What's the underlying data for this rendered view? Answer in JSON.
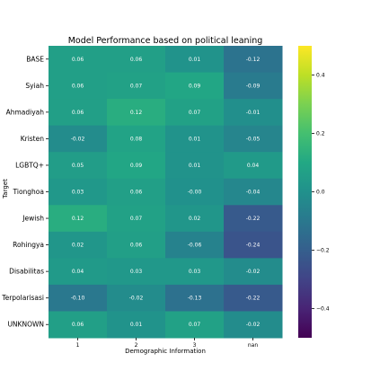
{
  "chart_data": {
    "type": "heatmap",
    "title": "Model Performance based on political leaning",
    "xlabel": "Demographic Information",
    "ylabel": "Target",
    "rows": [
      "BASE",
      "Syiah",
      "Ahmadiyah",
      "Kristen",
      "LGBTQ+",
      "Tionghoa",
      "Jewish",
      "Rohingya",
      "Disabilitas",
      "Terpolarisasi",
      "UNKNOWN"
    ],
    "columns": [
      "1",
      "2",
      "3",
      "nan"
    ],
    "values": [
      [
        0.06,
        0.06,
        0.01,
        -0.12
      ],
      [
        0.06,
        0.07,
        0.09,
        -0.09
      ],
      [
        0.06,
        0.12,
        0.07,
        -0.01
      ],
      [
        -0.02,
        0.08,
        0.01,
        -0.05
      ],
      [
        0.05,
        0.09,
        0.01,
        0.04
      ],
      [
        0.03,
        0.06,
        -0.0,
        -0.04
      ],
      [
        0.12,
        0.07,
        0.02,
        -0.22
      ],
      [
        0.02,
        0.06,
        -0.06,
        -0.24
      ],
      [
        0.04,
        0.03,
        0.03,
        -0.02
      ],
      [
        -0.1,
        -0.02,
        -0.13,
        -0.22
      ],
      [
        0.06,
        0.01,
        0.07,
        -0.02
      ]
    ],
    "cell_labels": [
      [
        "0.06",
        "0.06",
        "0.01",
        "-0.12"
      ],
      [
        "0.06",
        "0.07",
        "0.09",
        "-0.09"
      ],
      [
        "0.06",
        "0.12",
        "0.07",
        "-0.01"
      ],
      [
        "-0.02",
        "0.08",
        "0.01",
        "-0.05"
      ],
      [
        "0.05",
        "0.09",
        "0.01",
        "0.04"
      ],
      [
        "0.03",
        "0.06",
        "-0.00",
        "-0.04"
      ],
      [
        "0.12",
        "0.07",
        "0.02",
        "-0.22"
      ],
      [
        "0.02",
        "0.06",
        "-0.06",
        "-0.24"
      ],
      [
        "0.04",
        "0.03",
        "0.03",
        "-0.02"
      ],
      [
        "-0.10",
        "-0.02",
        "-0.13",
        "-0.22"
      ],
      [
        "0.06",
        "0.01",
        "0.07",
        "-0.02"
      ]
    ],
    "colorbar": {
      "colormap": "viridis",
      "range": [
        -0.5,
        0.5
      ],
      "ticks": [
        0.4,
        0.2,
        0.0,
        -0.2,
        -0.4
      ],
      "tick_labels": [
        "0.4",
        "0.2",
        "0.0",
        "−0.2",
        "−0.4"
      ]
    }
  }
}
